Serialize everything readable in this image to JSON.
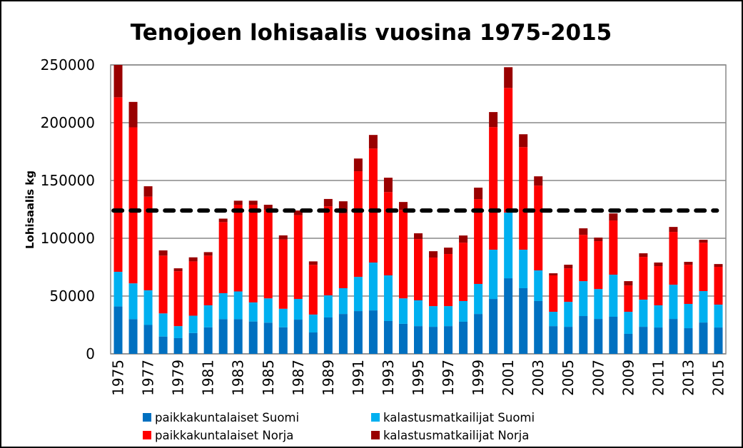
{
  "chart_data": {
    "type": "bar",
    "stacked": true,
    "title": "Tenojoen lohisaalis vuosina 1975-2015",
    "xlabel": "",
    "ylabel": "Lohisaalis kg",
    "ylim": [
      0,
      250000
    ],
    "y_ticks": [
      "0",
      "50000",
      "100000",
      "150000",
      "200000",
      "250000"
    ],
    "y_tick_values": [
      0,
      50000,
      100000,
      150000,
      200000,
      250000
    ],
    "grid": true,
    "legend_position": "bottom",
    "categories": [
      1975,
      1976,
      1977,
      1978,
      1979,
      1980,
      1981,
      1982,
      1983,
      1984,
      1985,
      1986,
      1987,
      1988,
      1989,
      1990,
      1991,
      1992,
      1993,
      1994,
      1995,
      1996,
      1997,
      1998,
      1999,
      2000,
      2001,
      2002,
      2003,
      2004,
      2005,
      2006,
      2007,
      2008,
      2009,
      2010,
      2011,
      2012,
      2013,
      2014,
      2015
    ],
    "x_tick_labels": [
      "1975",
      "1977",
      "1979",
      "1981",
      "1983",
      "1985",
      "1987",
      "1989",
      "1991",
      "1993",
      "1995",
      "1997",
      "1999",
      "2001",
      "2003",
      "2005",
      "2007",
      "2009",
      "2011",
      "2013",
      "2015"
    ],
    "series": [
      {
        "name": "paikkakuntalaiset Suomi",
        "color": "#0070C0",
        "values": [
          41000,
          30000,
          25000,
          15000,
          13600,
          18000,
          23000,
          30000,
          30000,
          28000,
          27000,
          23000,
          29600,
          18500,
          31500,
          34500,
          37000,
          37600,
          28400,
          26000,
          24000,
          23400,
          24000,
          27800,
          34500,
          47500,
          65400,
          56800,
          45700,
          24000,
          23400,
          32700,
          30200,
          32100,
          17300,
          23400,
          22800,
          30200,
          22200,
          27100,
          22800
        ]
      },
      {
        "name": "kalastusmatkailijat Suomi",
        "color": "#00B0F0",
        "values": [
          30000,
          31000,
          30000,
          20000,
          10400,
          15000,
          19000,
          22500,
          24000,
          16500,
          21000,
          16000,
          17900,
          15500,
          19100,
          22300,
          29600,
          41400,
          39500,
          22000,
          22300,
          17900,
          17300,
          17900,
          26000,
          42600,
          56800,
          33300,
          26500,
          12400,
          21600,
          30200,
          25900,
          36400,
          19100,
          23500,
          19200,
          29600,
          21000,
          27200,
          19800
        ]
      },
      {
        "name": "paikkakuntalaiset Norja",
        "color": "#FF0000",
        "values": [
          151000,
          135000,
          81000,
          50000,
          47500,
          47000,
          43000,
          61500,
          75000,
          84500,
          76600,
          60000,
          72500,
          43000,
          77100,
          64700,
          91400,
          98700,
          72100,
          76600,
          53000,
          42000,
          45100,
          50500,
          73400,
          106100,
          107900,
          88800,
          73400,
          31500,
          29000,
          40100,
          41400,
          46900,
          22800,
          37000,
          33900,
          45700,
          33900,
          41900,
          32700
        ]
      },
      {
        "name": "kalastusmatkailijat Norja",
        "color": "#990000",
        "values": [
          28000,
          22000,
          9000,
          4500,
          2500,
          3500,
          3000,
          3000,
          3500,
          3500,
          4400,
          3500,
          4000,
          3000,
          6300,
          10500,
          11000,
          11700,
          12400,
          6800,
          5000,
          5500,
          5500,
          6200,
          9900,
          13000,
          17900,
          11100,
          8000,
          1800,
          3100,
          5600,
          3100,
          6100,
          3700,
          3100,
          3100,
          4300,
          2500,
          2500,
          2400
        ]
      }
    ],
    "reference_line": {
      "value": 124000,
      "style": "dashed",
      "color": "#000000"
    }
  }
}
